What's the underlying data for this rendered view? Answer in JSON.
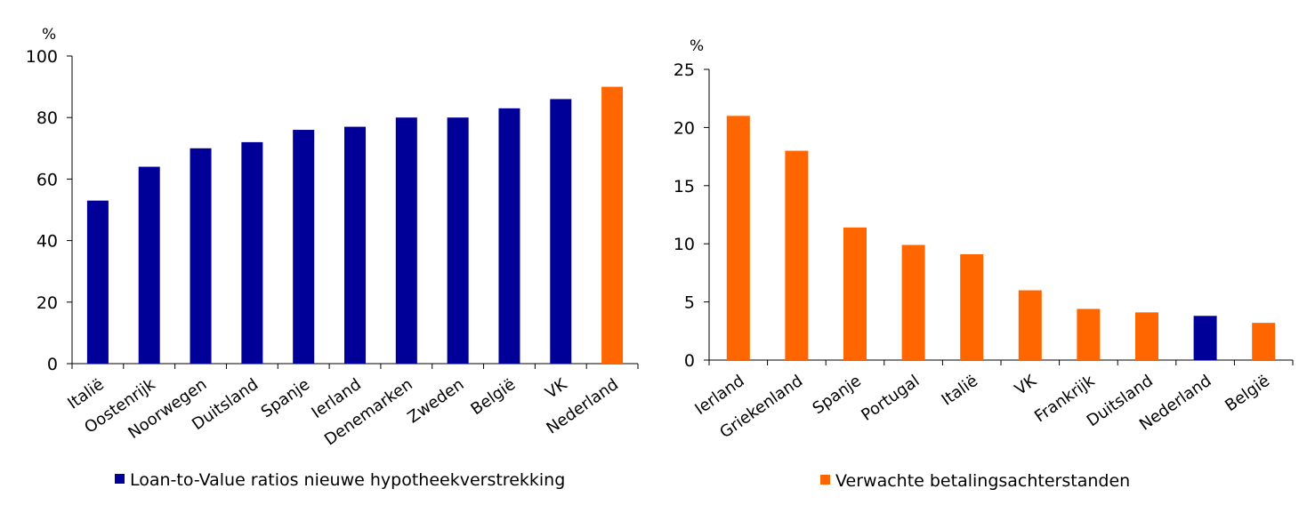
{
  "colors": {
    "blue": "#000099",
    "orange": "#FF6600",
    "axis": "#000000"
  },
  "chart_data": [
    {
      "type": "bar",
      "unit": "%",
      "ylim": [
        0,
        100
      ],
      "yticks": [
        0,
        20,
        40,
        60,
        80,
        100
      ],
      "grid": false,
      "legend_position": "bottom",
      "categories": [
        "Italië",
        "Oostenrijk",
        "Noorwegen",
        "Duitsland",
        "Spanje",
        "Ierland",
        "Denemarken",
        "Zweden",
        "België",
        "VK",
        "Nederland"
      ],
      "series": [
        {
          "name": "Loan-to-Value ratios nieuwe hypotheekverstrekking",
          "values": [
            53,
            64,
            70,
            72,
            76,
            77,
            80,
            80,
            83,
            86,
            90
          ]
        }
      ],
      "bar_colors": [
        "#000099",
        "#000099",
        "#000099",
        "#000099",
        "#000099",
        "#000099",
        "#000099",
        "#000099",
        "#000099",
        "#000099",
        "#FF6600"
      ],
      "legend_color": "#000099"
    },
    {
      "type": "bar",
      "unit": "%",
      "ylim": [
        0,
        25
      ],
      "yticks": [
        0,
        5,
        10,
        15,
        20,
        25
      ],
      "grid": false,
      "legend_position": "bottom",
      "categories": [
        "Ierland",
        "Griekenland",
        "Spanje",
        "Portugal",
        "Italië",
        "VK",
        "Frankrijk",
        "Duitsland",
        "Nederland",
        "België"
      ],
      "series": [
        {
          "name": "Verwachte betalingsachterstanden",
          "values": [
            21,
            18,
            11.4,
            9.9,
            9.1,
            6,
            4.4,
            4.1,
            3.8,
            3.2
          ]
        }
      ],
      "bar_colors": [
        "#FF6600",
        "#FF6600",
        "#FF6600",
        "#FF6600",
        "#FF6600",
        "#FF6600",
        "#FF6600",
        "#FF6600",
        "#000099",
        "#FF6600"
      ],
      "legend_color": "#FF6600"
    }
  ]
}
